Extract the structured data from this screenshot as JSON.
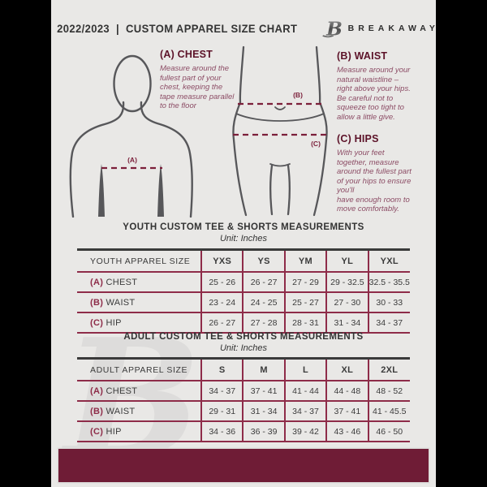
{
  "header": {
    "title": "2022/2023  |  CUSTOM APPAREL SIZE CHART",
    "brand_name": "BREAKAWAY",
    "logo_letter": "B"
  },
  "measure_guide": {
    "chest": {
      "heading": "(A) CHEST",
      "body": "Measure around the\nfullest part of your\nchest, keeping the\ntape measure parallel\nto the floor"
    },
    "waist": {
      "heading": "(B) WAIST",
      "body": "Measure around your\nnatural waistline –\nright above your hips.\nBe careful not to\nsqueeze too tight to\nallow a little give."
    },
    "hips": {
      "heading": "(C) HIPS",
      "body": "With your feet\ntogether, measure\naround the fullest part\nof your hips to ensure\nyou'll\nhave enough room to\nmove comfortably."
    },
    "markers": {
      "chest": "(A)",
      "waist": "(B)",
      "hips": "(C)"
    }
  },
  "youth_table": {
    "title": "YOUTH CUSTOM TEE & SHORTS MEASUREMENTS",
    "unit": "Unit: Inches",
    "header": [
      "YOUTH APPAREL SIZE",
      "YXS",
      "YS",
      "YM",
      "YL",
      "YXL"
    ],
    "rows": [
      {
        "prefix": "(A)",
        "label": "CHEST",
        "values": [
          "25 - 26",
          "26 - 27",
          "27 - 29",
          "29 - 32.5",
          "32.5 - 35.5"
        ]
      },
      {
        "prefix": "(B)",
        "label": "WAIST",
        "values": [
          "23 - 24",
          "24 - 25",
          "25 - 27",
          "27 - 30",
          "30 - 33"
        ]
      },
      {
        "prefix": "(C)",
        "label": "HIP",
        "values": [
          "26 - 27",
          "27 - 28",
          "28 - 31",
          "31 - 34",
          "34 - 37"
        ]
      }
    ]
  },
  "adult_table": {
    "title": "ADULT CUSTOM TEE & SHORTS MEASUREMENTS",
    "unit": "Unit: Inches",
    "header": [
      "ADULT APPAREL SIZE",
      "S",
      "M",
      "L",
      "XL",
      "2XL"
    ],
    "rows": [
      {
        "prefix": "(A)",
        "label": "CHEST",
        "values": [
          "34 - 37",
          "37 - 41",
          "41 - 44",
          "44 - 48",
          "48 - 52"
        ]
      },
      {
        "prefix": "(B)",
        "label": "WAIST",
        "values": [
          "29 - 31",
          "31 - 34",
          "34 - 37",
          "37 - 41",
          "41 - 45.5"
        ]
      },
      {
        "prefix": "(C)",
        "label": "HIP",
        "values": [
          "34 - 36",
          "36 - 39",
          "39 - 42",
          "43 - 46",
          "46 - 50"
        ]
      }
    ]
  },
  "colors": {
    "maroon_dash": "#7b1f3a",
    "table_border": "#8e2c49",
    "footer_bar": "#6f1c36",
    "text_dark": "#3a3a3a",
    "instruction_text": "#8c4c65",
    "figure_outline": "#57575a",
    "page_bg": "#e9e8e6",
    "frame": "#000000"
  }
}
